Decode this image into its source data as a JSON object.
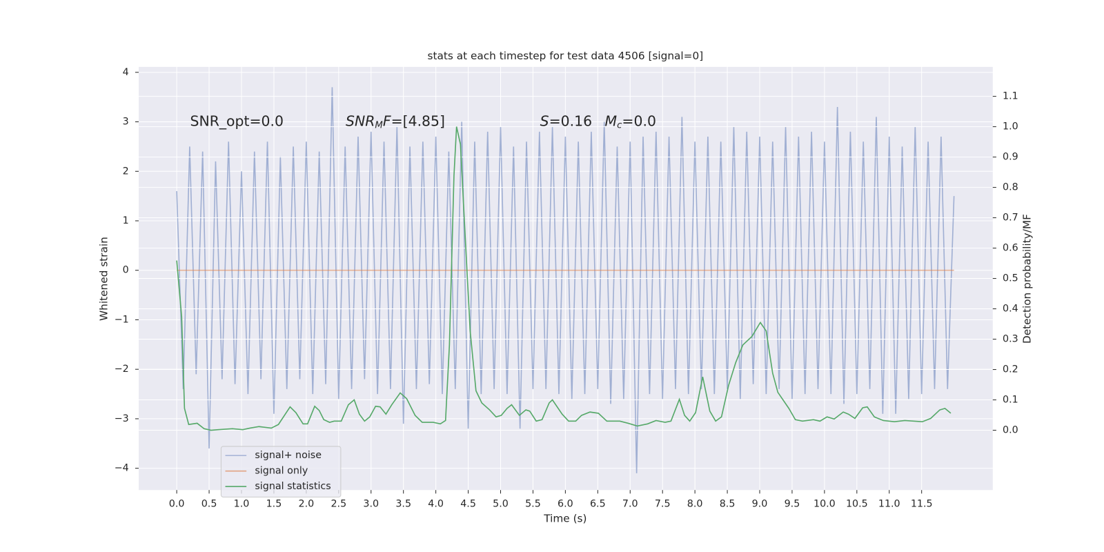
{
  "chart_data": {
    "type": "line",
    "title": "stats at each timestep for test data 4506 [signal=0]",
    "xlabel": "Time (s)",
    "ylabel": "Whitened strain",
    "y2label": "Detection probability/MF",
    "xlim": [
      -0.587,
      12.598
    ],
    "ylim": [
      -4.44,
      4.11
    ],
    "y2lim": [
      -0.197,
      1.197
    ],
    "xticks": [
      {
        "value": 0,
        "label": "0.0"
      },
      0.5,
      {
        "value": 1,
        "label": "1.0"
      },
      1.5,
      {
        "value": 2,
        "label": "2.0"
      },
      2.5,
      {
        "value": 3,
        "label": "3.0"
      },
      3.5,
      {
        "value": 4,
        "label": "4.0"
      },
      4.5,
      {
        "value": 5,
        "label": "5.0"
      },
      5.5,
      {
        "value": 6,
        "label": "6.0"
      },
      6.5,
      {
        "value": 7,
        "label": "7.0"
      },
      7.5,
      {
        "value": 8,
        "label": "8.0"
      },
      8.5,
      {
        "value": 9,
        "label": "9.0"
      },
      9.5,
      {
        "value": 10,
        "label": "10.0"
      },
      10.5,
      {
        "value": 11,
        "label": "11.0"
      },
      11.5
    ],
    "yticks": [
      {
        "value": -4,
        "label": "−4"
      },
      {
        "value": -3,
        "label": "−3"
      },
      {
        "value": -2,
        "label": "−2"
      },
      {
        "value": -1,
        "label": "−1"
      },
      0,
      1,
      2,
      3,
      4
    ],
    "y2ticks": [
      {
        "value": 0,
        "label": "0.0"
      },
      0.1,
      0.2,
      0.3,
      0.4,
      0.5,
      0.6,
      0.7,
      0.8,
      0.9,
      {
        "value": 1,
        "label": "1.0"
      },
      1.1
    ],
    "grid": true,
    "legend": "lower left",
    "annotations": [
      [
        {
          "text": "SNR_opt=0.0"
        }
      ],
      [
        {
          "text": "SNR",
          "italic": true
        },
        {
          "text": "M",
          "italic": true,
          "sub": true
        },
        {
          "text": "F",
          "italic": true
        },
        {
          "text": "=[4.85]"
        }
      ],
      [
        {
          "text": "S",
          "italic": true
        },
        {
          "text": "=0.16"
        }
      ],
      [
        {
          "text": "M",
          "italic": true
        },
        {
          "text": "c",
          "italic": true,
          "sub": true
        },
        {
          "text": "=0.0"
        }
      ]
    ],
    "series": [
      {
        "name": "signal+ noise",
        "color": "#8da0cb",
        "x": [
          0,
          0.1,
          0.2,
          0.3,
          0.4,
          0.5,
          0.6,
          0.7,
          0.8,
          0.9,
          1,
          1.1,
          1.2,
          1.3,
          1.4,
          1.5,
          1.6,
          1.7,
          1.8,
          1.9,
          2,
          2.1,
          2.2,
          2.3,
          2.4,
          2.5,
          2.6,
          2.7,
          2.8,
          2.9,
          3,
          3.1,
          3.2,
          3.3,
          3.4,
          3.5,
          3.6,
          3.7,
          3.8,
          3.9,
          4,
          4.1,
          4.2,
          4.3,
          4.4,
          4.5,
          4.6,
          4.7,
          4.8,
          4.9,
          5,
          5.1,
          5.2,
          5.3,
          5.4,
          5.5,
          5.6,
          5.7,
          5.8,
          5.9,
          6,
          6.1,
          6.2,
          6.3,
          6.4,
          6.5,
          6.6,
          6.7,
          6.8,
          6.9,
          7,
          7.1,
          7.2,
          7.3,
          7.4,
          7.5,
          7.6,
          7.7,
          7.8,
          7.9,
          8,
          8.1,
          8.2,
          8.3,
          8.4,
          8.5,
          8.6,
          8.7,
          8.8,
          8.9,
          9,
          9.1,
          9.2,
          9.3,
          9.4,
          9.5,
          9.6,
          9.7,
          9.8,
          9.9,
          10,
          10.1,
          10.2,
          10.3,
          10.4,
          10.5,
          10.6,
          10.7,
          10.8,
          10.9,
          11,
          11.1,
          11.2,
          11.3,
          11.4,
          11.5,
          11.6,
          11.7,
          11.8,
          11.9,
          12
        ],
        "values": [
          1.6,
          -2.4,
          2.5,
          -2.1,
          2.4,
          -3.6,
          2.2,
          -2.2,
          2.6,
          -2.3,
          2.0,
          -2.5,
          2.4,
          -2.2,
          2.6,
          -2.9,
          2.3,
          -2.4,
          2.5,
          -2.2,
          2.6,
          -2.5,
          2.4,
          -2.3,
          3.7,
          -2.6,
          2.5,
          -2.4,
          2.7,
          -2.2,
          2.8,
          -2.5,
          2.6,
          -2.4,
          2.9,
          -3.1,
          2.5,
          -2.4,
          2.6,
          -2.3,
          2.7,
          -2.5,
          2.4,
          -2.4,
          3.0,
          -3.2,
          2.6,
          -2.5,
          2.8,
          -2.4,
          2.9,
          -2.5,
          2.5,
          -3.2,
          2.6,
          -2.4,
          2.8,
          -2.4,
          2.9,
          -2.5,
          2.7,
          -2.6,
          2.6,
          -2.5,
          2.8,
          -2.4,
          3.0,
          -2.7,
          2.5,
          -2.6,
          2.6,
          -4.1,
          2.7,
          -2.5,
          2.8,
          -2.6,
          2.7,
          -2.4,
          3.1,
          -2.5,
          2.6,
          -2.4,
          2.7,
          -2.5,
          2.6,
          -2.4,
          2.9,
          -2.6,
          2.8,
          -2.3,
          2.7,
          -2.5,
          2.6,
          -2.4,
          2.9,
          -2.6,
          2.7,
          -2.5,
          2.8,
          -2.4,
          2.6,
          -2.5,
          3.3,
          -2.7,
          2.8,
          -2.5,
          2.6,
          -2.4,
          3.1,
          -2.9,
          2.7,
          -2.9,
          2.5,
          -2.6,
          2.9,
          -2.5,
          2.6,
          -2.4,
          2.7,
          -2.4,
          1.5
        ]
      },
      {
        "name": "signal only",
        "color": "#dd8452",
        "x": [
          0,
          12
        ],
        "values": [
          0,
          0
        ]
      },
      {
        "name": "signal statistics",
        "color": "#55a868",
        "axis": "y2",
        "x": [
          0,
          0.076,
          0.12,
          0.185,
          0.315,
          0.424,
          0.53,
          0.64,
          0.86,
          1.02,
          1.13,
          1.27,
          1.46,
          1.57,
          1.75,
          1.84,
          1.95,
          2.02,
          2.13,
          2.2,
          2.27,
          2.36,
          2.43,
          2.54,
          2.65,
          2.74,
          2.82,
          2.9,
          2.98,
          3.07,
          3.14,
          3.23,
          3.32,
          3.45,
          3.55,
          3.68,
          3.79,
          3.96,
          4.07,
          4.15,
          4.21,
          4.28,
          4.32,
          4.38,
          4.45,
          4.53,
          4.62,
          4.71,
          4.83,
          4.93,
          5.01,
          5.1,
          5.17,
          5.29,
          5.39,
          5.45,
          5.55,
          5.64,
          5.75,
          5.8,
          5.95,
          6.05,
          6.16,
          6.25,
          6.38,
          6.51,
          6.64,
          6.84,
          6.97,
          7.11,
          7.27,
          7.4,
          7.54,
          7.63,
          7.76,
          7.84,
          7.92,
          8.01,
          8.12,
          8.23,
          8.32,
          8.41,
          8.52,
          8.63,
          8.74,
          8.88,
          9.01,
          9.1,
          9.2,
          9.28,
          9.45,
          9.55,
          9.66,
          9.83,
          9.93,
          10.04,
          10.15,
          10.29,
          10.37,
          10.47,
          10.59,
          10.66,
          10.77,
          10.91,
          11.08,
          11.24,
          11.51,
          11.64,
          11.78,
          11.86,
          11.95
        ],
        "values": [
          0.559,
          0.374,
          0.072,
          0.019,
          0.023,
          0.005,
          0,
          0.002,
          0.005,
          0.002,
          0.007,
          0.012,
          0.007,
          0.019,
          0.077,
          0.058,
          0.021,
          0.021,
          0.079,
          0.065,
          0.035,
          0.026,
          0.03,
          0.03,
          0.084,
          0.1,
          0.053,
          0.03,
          0.044,
          0.079,
          0.077,
          0.053,
          0.084,
          0.123,
          0.104,
          0.049,
          0.026,
          0.026,
          0.021,
          0.032,
          0.281,
          0.838,
          1.0,
          0.942,
          0.652,
          0.327,
          0.13,
          0.09,
          0.067,
          0.044,
          0.049,
          0.072,
          0.084,
          0.049,
          0.067,
          0.063,
          0.03,
          0.035,
          0.09,
          0.1,
          0.053,
          0.03,
          0.03,
          0.049,
          0.06,
          0.056,
          0.03,
          0.03,
          0.023,
          0.014,
          0.021,
          0.032,
          0.026,
          0.03,
          0.102,
          0.049,
          0.03,
          0.058,
          0.176,
          0.063,
          0.03,
          0.044,
          0.148,
          0.223,
          0.281,
          0.309,
          0.355,
          0.327,
          0.188,
          0.125,
          0.072,
          0.035,
          0.03,
          0.035,
          0.03,
          0.044,
          0.037,
          0.06,
          0.053,
          0.039,
          0.074,
          0.077,
          0.044,
          0.032,
          0.028,
          0.032,
          0.028,
          0.039,
          0.067,
          0.072,
          0.056
        ]
      }
    ]
  }
}
